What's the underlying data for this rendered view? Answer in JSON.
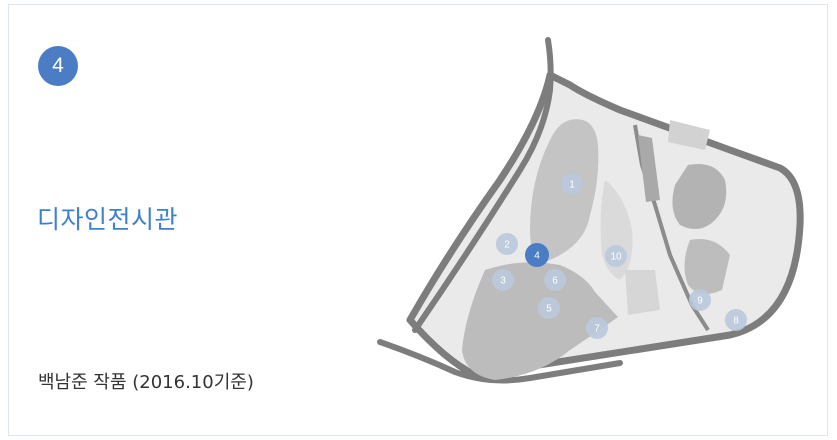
{
  "section": {
    "number": "4",
    "title": "디자인전시관",
    "caption": "백남준 작품 (2016.10기준)"
  },
  "map": {
    "markers": [
      {
        "label": "1",
        "active": false
      },
      {
        "label": "2",
        "active": false
      },
      {
        "label": "3",
        "active": false
      },
      {
        "label": "4",
        "active": true
      },
      {
        "label": "5",
        "active": false
      },
      {
        "label": "6",
        "active": false
      },
      {
        "label": "7",
        "active": false
      },
      {
        "label": "8",
        "active": false
      },
      {
        "label": "9",
        "active": false
      },
      {
        "label": "10",
        "active": false
      }
    ],
    "colors": {
      "marker": "#b9c9dc",
      "marker_active": "#4a7dc4",
      "road": "#7d7d7d",
      "ground": "#eaeaea",
      "lawn": "#cfcfcf",
      "building": "#b3b3b3"
    }
  }
}
